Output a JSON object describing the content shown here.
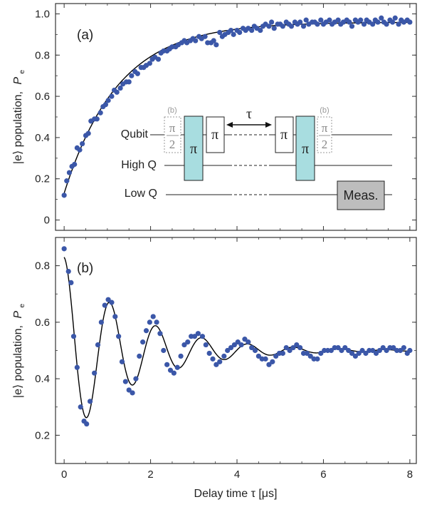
{
  "chart_data": [
    {
      "type": "scatter",
      "panel_label": "(a)",
      "xlabel": "",
      "ylabel": "|e⟩ population,",
      "ylabel_symbol": "P",
      "ylabel_sub": "e",
      "xlim": [
        -0.2,
        8.15
      ],
      "ylim": [
        -0.05,
        1.05
      ],
      "xticks": [
        "0",
        "2",
        "4",
        "6",
        "8"
      ],
      "yticks": [
        "0",
        "0.2",
        "0.4",
        "0.6",
        "0.8",
        "1.0"
      ],
      "point_color": "#3b57a8",
      "fit_color": "#000000",
      "fit": {
        "model": "1 - A*exp(-t/T)",
        "A": 0.83,
        "T": 1.25,
        "offset": 0.96
      },
      "points": [
        [
          0.0,
          0.12
        ],
        [
          0.06,
          0.19
        ],
        [
          0.12,
          0.23
        ],
        [
          0.18,
          0.26
        ],
        [
          0.24,
          0.27
        ],
        [
          0.3,
          0.35
        ],
        [
          0.36,
          0.34
        ],
        [
          0.42,
          0.37
        ],
        [
          0.5,
          0.41
        ],
        [
          0.56,
          0.42
        ],
        [
          0.62,
          0.48
        ],
        [
          0.7,
          0.49
        ],
        [
          0.76,
          0.49
        ],
        [
          0.84,
          0.52
        ],
        [
          0.9,
          0.55
        ],
        [
          0.96,
          0.56
        ],
        [
          1.02,
          0.58
        ],
        [
          1.1,
          0.6
        ],
        [
          1.16,
          0.63
        ],
        [
          1.22,
          0.62
        ],
        [
          1.3,
          0.64
        ],
        [
          1.36,
          0.66
        ],
        [
          1.44,
          0.67
        ],
        [
          1.5,
          0.67
        ],
        [
          1.56,
          0.7
        ],
        [
          1.64,
          0.72
        ],
        [
          1.7,
          0.71
        ],
        [
          1.78,
          0.74
        ],
        [
          1.84,
          0.74
        ],
        [
          1.9,
          0.75
        ],
        [
          1.98,
          0.76
        ],
        [
          2.04,
          0.78
        ],
        [
          2.1,
          0.79
        ],
        [
          2.18,
          0.78
        ],
        [
          2.24,
          0.81
        ],
        [
          2.3,
          0.82
        ],
        [
          2.38,
          0.82
        ],
        [
          2.44,
          0.83
        ],
        [
          2.5,
          0.84
        ],
        [
          2.58,
          0.84
        ],
        [
          2.64,
          0.85
        ],
        [
          2.72,
          0.86
        ],
        [
          2.78,
          0.87
        ],
        [
          2.84,
          0.86
        ],
        [
          2.92,
          0.87
        ],
        [
          2.98,
          0.88
        ],
        [
          3.04,
          0.87
        ],
        [
          3.12,
          0.89
        ],
        [
          3.18,
          0.88
        ],
        [
          3.26,
          0.89
        ],
        [
          3.32,
          0.86
        ],
        [
          3.4,
          0.86
        ],
        [
          3.46,
          0.87
        ],
        [
          3.52,
          0.85
        ],
        [
          3.6,
          0.91
        ],
        [
          3.66,
          0.89
        ],
        [
          3.72,
          0.9
        ],
        [
          3.8,
          0.91
        ],
        [
          3.86,
          0.92
        ],
        [
          3.92,
          0.9
        ],
        [
          4.0,
          0.92
        ],
        [
          4.06,
          0.91
        ],
        [
          4.14,
          0.93
        ],
        [
          4.2,
          0.92
        ],
        [
          4.26,
          0.93
        ],
        [
          4.34,
          0.92
        ],
        [
          4.4,
          0.94
        ],
        [
          4.46,
          0.93
        ],
        [
          4.54,
          0.92
        ],
        [
          4.6,
          0.94
        ],
        [
          4.66,
          0.95
        ],
        [
          4.74,
          0.94
        ],
        [
          4.8,
          0.96
        ],
        [
          4.86,
          0.93
        ],
        [
          4.94,
          0.95
        ],
        [
          5.0,
          0.95
        ],
        [
          5.06,
          0.94
        ],
        [
          5.14,
          0.96
        ],
        [
          5.2,
          0.95
        ],
        [
          5.26,
          0.94
        ],
        [
          5.34,
          0.96
        ],
        [
          5.4,
          0.95
        ],
        [
          5.46,
          0.96
        ],
        [
          5.54,
          0.94
        ],
        [
          5.6,
          0.97
        ],
        [
          5.66,
          0.95
        ],
        [
          5.74,
          0.96
        ],
        [
          5.8,
          0.96
        ],
        [
          5.86,
          0.95
        ],
        [
          5.94,
          0.97
        ],
        [
          6.0,
          0.95
        ],
        [
          6.06,
          0.96
        ],
        [
          6.14,
          0.97
        ],
        [
          6.2,
          0.95
        ],
        [
          6.26,
          0.96
        ],
        [
          6.34,
          0.97
        ],
        [
          6.4,
          0.95
        ],
        [
          6.46,
          0.96
        ],
        [
          6.54,
          0.97
        ],
        [
          6.6,
          0.96
        ],
        [
          6.66,
          0.94
        ],
        [
          6.74,
          0.97
        ],
        [
          6.8,
          0.96
        ],
        [
          6.86,
          0.97
        ],
        [
          6.94,
          0.95
        ],
        [
          7.0,
          0.97
        ],
        [
          7.06,
          0.96
        ],
        [
          7.14,
          0.95
        ],
        [
          7.2,
          0.97
        ],
        [
          7.26,
          0.96
        ],
        [
          7.34,
          0.98
        ],
        [
          7.4,
          0.96
        ],
        [
          7.46,
          0.95
        ],
        [
          7.54,
          0.97
        ],
        [
          7.6,
          0.96
        ],
        [
          7.66,
          0.98
        ],
        [
          7.74,
          0.95
        ],
        [
          7.8,
          0.97
        ],
        [
          7.86,
          0.96
        ],
        [
          7.94,
          0.97
        ],
        [
          8.0,
          0.96
        ]
      ]
    },
    {
      "type": "scatter",
      "panel_label": "(b)",
      "xlabel": "Delay time τ [μs]",
      "ylabel": "|e⟩ population,",
      "ylabel_symbol": "P",
      "ylabel_sub": "e",
      "xlim": [
        -0.2,
        8.15
      ],
      "ylim": [
        0.1,
        0.9
      ],
      "xticks": [
        "0",
        "2",
        "4",
        "6",
        "8"
      ],
      "yticks": [
        "0.2",
        "0.4",
        "0.6",
        "0.8"
      ],
      "point_color": "#3b57a8",
      "fit_color": "#000000",
      "fit": {
        "model": "0.5 + A*cos(2πf t)*exp(-t/T)",
        "A": 0.33,
        "f": 0.94,
        "T": 1.6
      },
      "points": [
        [
          0.0,
          0.86
        ],
        [
          0.1,
          0.78
        ],
        [
          0.16,
          0.74
        ],
        [
          0.22,
          0.55
        ],
        [
          0.3,
          0.44
        ],
        [
          0.38,
          0.3
        ],
        [
          0.46,
          0.25
        ],
        [
          0.52,
          0.24
        ],
        [
          0.6,
          0.32
        ],
        [
          0.7,
          0.42
        ],
        [
          0.78,
          0.52
        ],
        [
          0.86,
          0.6
        ],
        [
          0.94,
          0.66
        ],
        [
          1.02,
          0.68
        ],
        [
          1.1,
          0.67
        ],
        [
          1.18,
          0.62
        ],
        [
          1.26,
          0.55
        ],
        [
          1.34,
          0.46
        ],
        [
          1.42,
          0.39
        ],
        [
          1.5,
          0.36
        ],
        [
          1.58,
          0.35
        ],
        [
          1.66,
          0.4
        ],
        [
          1.74,
          0.48
        ],
        [
          1.82,
          0.53
        ],
        [
          1.9,
          0.57
        ],
        [
          1.98,
          0.6
        ],
        [
          2.06,
          0.62
        ],
        [
          2.14,
          0.6
        ],
        [
          2.22,
          0.56
        ],
        [
          2.3,
          0.5
        ],
        [
          2.38,
          0.45
        ],
        [
          2.46,
          0.43
        ],
        [
          2.54,
          0.42
        ],
        [
          2.62,
          0.44
        ],
        [
          2.7,
          0.48
        ],
        [
          2.78,
          0.52
        ],
        [
          2.86,
          0.53
        ],
        [
          2.94,
          0.55
        ],
        [
          3.02,
          0.55
        ],
        [
          3.1,
          0.56
        ],
        [
          3.2,
          0.55
        ],
        [
          3.28,
          0.52
        ],
        [
          3.36,
          0.49
        ],
        [
          3.44,
          0.47
        ],
        [
          3.52,
          0.45
        ],
        [
          3.6,
          0.46
        ],
        [
          3.7,
          0.48
        ],
        [
          3.78,
          0.5
        ],
        [
          3.86,
          0.51
        ],
        [
          3.94,
          0.52
        ],
        [
          4.02,
          0.53
        ],
        [
          4.1,
          0.52
        ],
        [
          4.18,
          0.54
        ],
        [
          4.26,
          0.53
        ],
        [
          4.34,
          0.51
        ],
        [
          4.42,
          0.5
        ],
        [
          4.5,
          0.48
        ],
        [
          4.58,
          0.47
        ],
        [
          4.66,
          0.47
        ],
        [
          4.74,
          0.45
        ],
        [
          4.82,
          0.46
        ],
        [
          4.9,
          0.48
        ],
        [
          4.98,
          0.49
        ],
        [
          5.06,
          0.49
        ],
        [
          5.14,
          0.51
        ],
        [
          5.22,
          0.5
        ],
        [
          5.3,
          0.51
        ],
        [
          5.38,
          0.52
        ],
        [
          5.46,
          0.51
        ],
        [
          5.54,
          0.49
        ],
        [
          5.62,
          0.49
        ],
        [
          5.7,
          0.48
        ],
        [
          5.78,
          0.47
        ],
        [
          5.86,
          0.47
        ],
        [
          5.94,
          0.49
        ],
        [
          6.02,
          0.5
        ],
        [
          6.1,
          0.5
        ],
        [
          6.18,
          0.5
        ],
        [
          6.26,
          0.51
        ],
        [
          6.34,
          0.51
        ],
        [
          6.42,
          0.5
        ],
        [
          6.5,
          0.51
        ],
        [
          6.58,
          0.5
        ],
        [
          6.66,
          0.49
        ],
        [
          6.74,
          0.48
        ],
        [
          6.82,
          0.49
        ],
        [
          6.9,
          0.5
        ],
        [
          6.98,
          0.49
        ],
        [
          7.06,
          0.5
        ],
        [
          7.14,
          0.5
        ],
        [
          7.22,
          0.49
        ],
        [
          7.3,
          0.5
        ],
        [
          7.38,
          0.51
        ],
        [
          7.46,
          0.5
        ],
        [
          7.54,
          0.51
        ],
        [
          7.62,
          0.51
        ],
        [
          7.7,
          0.5
        ],
        [
          7.78,
          0.5
        ],
        [
          7.86,
          0.51
        ],
        [
          7.94,
          0.49
        ],
        [
          8.0,
          0.5
        ]
      ]
    }
  ],
  "inset": {
    "rows": [
      "Qubit",
      "High Q",
      "Low Q"
    ],
    "tau_label": "τ",
    "pi_label": "π",
    "half_pi_num": "π",
    "half_pi_den": "2",
    "b_tag": "(b)",
    "meas_label": "Meas.",
    "pulse_fill": "#a8dde0",
    "meas_fill": "#bdbdbd"
  }
}
